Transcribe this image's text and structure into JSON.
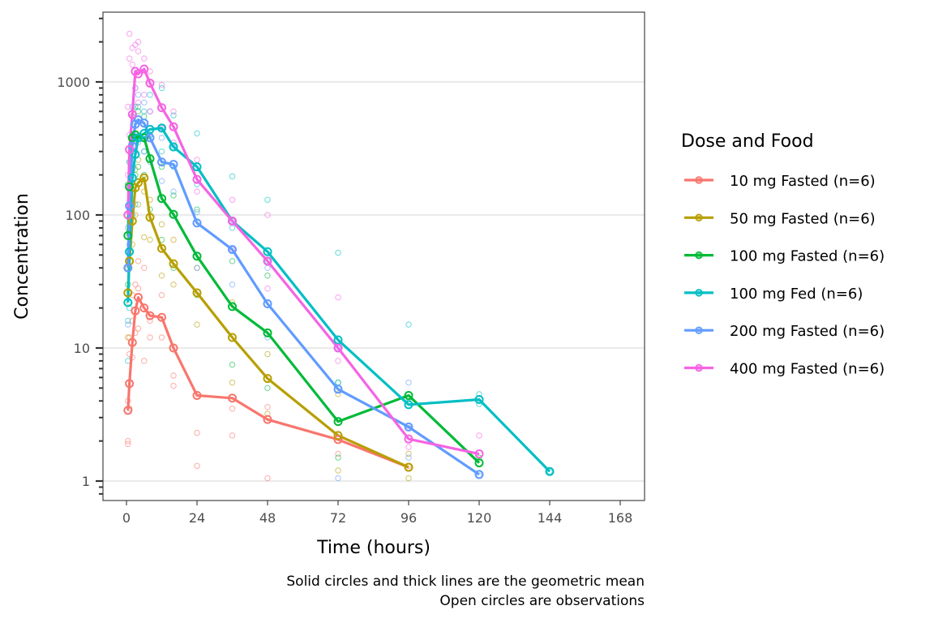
{
  "chart_data": {
    "type": "line",
    "title": "",
    "xlabel": "Time (hours)",
    "ylabel": "Concentration",
    "xlim": [
      -8,
      176
    ],
    "ylim": [
      0.75,
      3500
    ],
    "y_scale": "log10",
    "x_ticks": [
      0,
      24,
      48,
      72,
      96,
      120,
      144,
      168
    ],
    "x_tick_labels": [
      "0",
      "24",
      "48",
      "72",
      "96",
      "120",
      "144",
      "168"
    ],
    "y_ticks": [
      1,
      10,
      100,
      1000
    ],
    "y_tick_labels": [
      "1",
      "10",
      "100",
      "1000"
    ],
    "grid": "horizontal-major",
    "legend": {
      "title": "Dose and Food",
      "placement": "right"
    },
    "caption": [
      "Solid circles and thick lines are the geometric mean",
      "Open circles are observations"
    ],
    "series": [
      {
        "name": "10 mg Fasted (n=6)",
        "color": "#F8766D",
        "mean": {
          "x": [
            0.5,
            1,
            2,
            3,
            4,
            6,
            8,
            12,
            16,
            24,
            36,
            48,
            72,
            96
          ],
          "y": [
            3.4,
            5.4,
            11,
            19,
            24,
            20,
            17.5,
            17,
            10,
            4.4,
            4.2,
            2.9,
            2.05,
            1.27
          ]
        },
        "observations": {
          "x": [
            0.5,
            0.5,
            0.5,
            1,
            1,
            1,
            2,
            2,
            2,
            3,
            3,
            4,
            4,
            4,
            6,
            6,
            8,
            8,
            12,
            12,
            16,
            16,
            24,
            24,
            36,
            36,
            48,
            48,
            72,
            96
          ],
          "y": [
            2.0,
            1.9,
            4.0,
            3.5,
            9.0,
            12,
            8.5,
            16,
            25,
            13,
            30,
            14,
            28,
            45,
            8,
            40,
            16,
            12,
            12,
            25,
            5.2,
            6.2,
            2.3,
            1.3,
            2.2,
            3.5,
            1.05,
            3.6,
            1.6,
            1.3
          ]
        }
      },
      {
        "name": "50 mg Fasted (n=6)",
        "color": "#B79F00",
        "mean": {
          "x": [
            0.5,
            1,
            2,
            3,
            4,
            6,
            8,
            12,
            16,
            24,
            36,
            48,
            72,
            96
          ],
          "y": [
            26,
            45,
            90,
            160,
            175,
            190,
            96,
            56,
            43,
            26,
            12,
            5.9,
            2.2,
            1.27
          ]
        },
        "observations": {
          "x": [
            0.5,
            0.5,
            1,
            1,
            2,
            2,
            3,
            3,
            4,
            4,
            6,
            6,
            8,
            8,
            12,
            12,
            16,
            16,
            24,
            24,
            36,
            36,
            48,
            48,
            72,
            72,
            96,
            96
          ],
          "y": [
            12,
            40,
            22,
            70,
            60,
            130,
            100,
            220,
            120,
            260,
            68,
            150,
            65,
            130,
            35,
            85,
            30,
            65,
            15,
            40,
            5.5,
            22,
            3.2,
            9,
            1.2,
            4.5,
            1.05,
            1.6
          ]
        }
      },
      {
        "name": "100 mg Fasted (n=6)",
        "color": "#00BA38",
        "mean": {
          "x": [
            0.5,
            1,
            2,
            3,
            4,
            6,
            8,
            12,
            16,
            24,
            36,
            48,
            72,
            96,
            120
          ],
          "y": [
            70,
            163,
            380,
            400,
            380,
            380,
            265,
            133,
            101,
            49,
            20.5,
            13,
            2.8,
            4.4,
            1.37
          ]
        },
        "observations": {
          "x": [
            0.5,
            0.5,
            1,
            1,
            2,
            2,
            3,
            3,
            4,
            4,
            6,
            6,
            8,
            8,
            12,
            12,
            16,
            16,
            24,
            24,
            36,
            36,
            48,
            48,
            72,
            72,
            96,
            120
          ],
          "y": [
            30,
            170,
            95,
            250,
            240,
            550,
            200,
            650,
            230,
            600,
            200,
            550,
            110,
            400,
            65,
            230,
            40,
            140,
            25,
            110,
            7.5,
            45,
            5,
            35,
            1.5,
            5.5,
            4.2,
            1.5
          ]
        }
      },
      {
        "name": "100 mg Fed (n=6)",
        "color": "#00BFC4",
        "mean": {
          "x": [
            0.5,
            1,
            2,
            3,
            4,
            6,
            8,
            12,
            16,
            24,
            36,
            48,
            72,
            96,
            120,
            144
          ],
          "y": [
            22,
            53,
            190,
            285,
            380,
            410,
            440,
            450,
            325,
            230,
            90,
            53,
            11.5,
            3.75,
            4.1,
            1.18
          ]
        },
        "observations": {
          "x": [
            0.5,
            0.5,
            1,
            1,
            2,
            2,
            3,
            3,
            4,
            6,
            6,
            8,
            8,
            12,
            12,
            16,
            16,
            24,
            24,
            36,
            36,
            48,
            48,
            72,
            72,
            96,
            96,
            120,
            120,
            144
          ],
          "y": [
            8,
            16,
            20,
            110,
            100,
            300,
            120,
            500,
            650,
            300,
            600,
            400,
            800,
            300,
            900,
            230,
            560,
            170,
            410,
            80,
            195,
            45,
            130,
            5.5,
            52,
            2.5,
            15,
            3.8,
            4.5,
            1.18
          ]
        }
      },
      {
        "name": "200 mg Fasted (n=6)",
        "color": "#619CFF",
        "mean": {
          "x": [
            0.5,
            1,
            2,
            3,
            4,
            6,
            8,
            12,
            16,
            24,
            36,
            48,
            72,
            96,
            120
          ],
          "y": [
            40,
            117,
            330,
            480,
            520,
            490,
            380,
            250,
            240,
            87,
            55,
            21.5,
            4.9,
            2.55,
            1.12
          ]
        },
        "observations": {
          "x": [
            0.5,
            0.5,
            1,
            1,
            2,
            2,
            3,
            3,
            4,
            4,
            6,
            6,
            8,
            8,
            12,
            12,
            16,
            16,
            24,
            24,
            36,
            36,
            48,
            48,
            72,
            72,
            96,
            96,
            120
          ],
          "y": [
            15,
            80,
            60,
            250,
            220,
            650,
            300,
            900,
            350,
            800,
            300,
            700,
            250,
            600,
            180,
            380,
            150,
            320,
            40,
            105,
            30,
            90,
            12,
            40,
            1.05,
            10,
            1.5,
            5.5,
            1.1
          ]
        }
      },
      {
        "name": "400 mg Fasted (n=6)",
        "color": "#F564E3",
        "mean": {
          "x": [
            0.5,
            1,
            2,
            3,
            4,
            6,
            8,
            12,
            16,
            24,
            36,
            48,
            72,
            96,
            120
          ],
          "y": [
            100,
            310,
            570,
            1200,
            1150,
            1250,
            980,
            640,
            460,
            185,
            90,
            45,
            10,
            2.07,
            1.6
          ]
        },
        "observations": {
          "x": [
            0.5,
            0.5,
            1,
            1,
            1,
            2,
            2,
            2,
            3,
            3,
            4,
            4,
            4,
            6,
            6,
            8,
            8,
            12,
            12,
            16,
            16,
            24,
            24,
            36,
            36,
            48,
            48,
            72,
            72,
            96,
            96,
            120
          ],
          "y": [
            200,
            650,
            400,
            1500,
            2300,
            550,
            1350,
            1800,
            900,
            1900,
            700,
            1700,
            2000,
            800,
            1500,
            600,
            1200,
            450,
            950,
            350,
            600,
            150,
            260,
            55,
            130,
            28,
            100,
            8,
            24,
            1.8,
            2.6,
            2.2
          ]
        }
      }
    ]
  }
}
